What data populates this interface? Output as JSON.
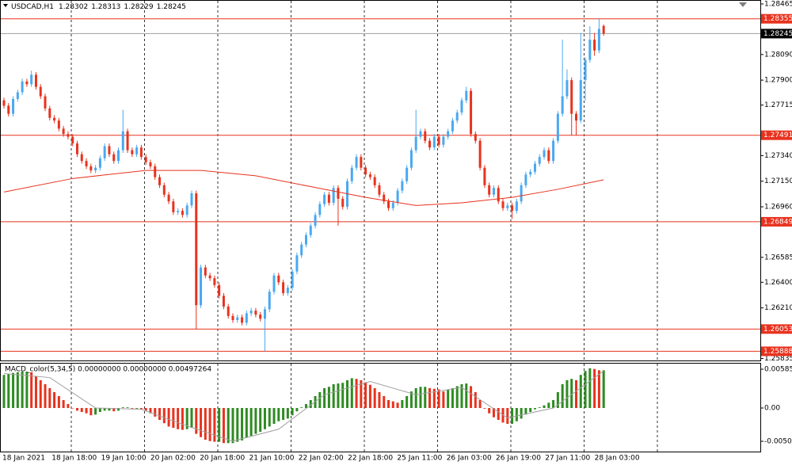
{
  "chart_data": [
    {
      "type": "candlestick",
      "symbol": "USDCAD,H1",
      "up_color": "#4aa8f0",
      "down_color": "#e8321e",
      "ohlc": [
        [
          1.2775,
          1.2777,
          1.2769,
          1.2771
        ],
        [
          1.2771,
          1.2773,
          1.2763,
          1.2765
        ],
        [
          1.2765,
          1.2778,
          1.2763,
          1.2776
        ],
        [
          1.2776,
          1.2783,
          1.2774,
          1.2781
        ],
        [
          1.2781,
          1.2791,
          1.2779,
          1.2789
        ],
        [
          1.2789,
          1.2791,
          1.2785,
          1.2787
        ],
        [
          1.2787,
          1.2797,
          1.2785,
          1.2794
        ],
        [
          1.2794,
          1.2796,
          1.2783,
          1.2785
        ],
        [
          1.2785,
          1.2787,
          1.2776,
          1.2778
        ],
        [
          1.2778,
          1.278,
          1.2767,
          1.2769
        ],
        [
          1.2769,
          1.2771,
          1.276,
          1.2762
        ],
        [
          1.2762,
          1.2764,
          1.2758,
          1.276
        ],
        [
          1.276,
          1.2762,
          1.2752,
          1.2754
        ],
        [
          1.2754,
          1.2756,
          1.2748,
          1.275
        ],
        [
          1.275,
          1.2752,
          1.2746,
          1.2748
        ],
        [
          1.2748,
          1.275,
          1.2741,
          1.2743
        ],
        [
          1.2743,
          1.2745,
          1.2733,
          1.2735
        ],
        [
          1.2735,
          1.2737,
          1.2728,
          1.273
        ],
        [
          1.273,
          1.2732,
          1.2724,
          1.2726
        ],
        [
          1.2726,
          1.2728,
          1.2721,
          1.2723
        ],
        [
          1.2723,
          1.2727,
          1.2721,
          1.2725
        ],
        [
          1.2725,
          1.2734,
          1.2723,
          1.2732
        ],
        [
          1.2732,
          1.2743,
          1.273,
          1.2741
        ],
        [
          1.2741,
          1.2743,
          1.2733,
          1.2735
        ],
        [
          1.2735,
          1.2737,
          1.2728,
          1.273
        ],
        [
          1.273,
          1.274,
          1.2728,
          1.2738
        ],
        [
          1.2738,
          1.2768,
          1.2736,
          1.2752
        ],
        [
          1.2752,
          1.2754,
          1.2736,
          1.2738
        ],
        [
          1.2738,
          1.274,
          1.2733,
          1.2735
        ],
        [
          1.2735,
          1.2742,
          1.2733,
          1.274
        ],
        [
          1.274,
          1.2742,
          1.2731,
          1.2733
        ],
        [
          1.2733,
          1.2735,
          1.2727,
          1.2729
        ],
        [
          1.2729,
          1.2731,
          1.2724,
          1.2726
        ],
        [
          1.2726,
          1.2728,
          1.2716,
          1.2718
        ],
        [
          1.2718,
          1.272,
          1.271,
          1.2712
        ],
        [
          1.2712,
          1.2714,
          1.2703,
          1.2705
        ],
        [
          1.2705,
          1.2707,
          1.2698,
          1.27
        ],
        [
          1.27,
          1.2702,
          1.269,
          1.2692
        ],
        [
          1.2692,
          1.2695,
          1.269,
          1.2693
        ],
        [
          1.2693,
          1.2695,
          1.2688,
          1.269
        ],
        [
          1.269,
          1.2699,
          1.2688,
          1.2697
        ],
        [
          1.2697,
          1.2708,
          1.2695,
          1.2706
        ],
        [
          1.2706,
          1.2708,
          1.2605,
          1.2623
        ],
        [
          1.2623,
          1.2653,
          1.2621,
          1.2651
        ],
        [
          1.2651,
          1.2653,
          1.2643,
          1.2645
        ],
        [
          1.2645,
          1.2647,
          1.2641,
          1.2643
        ],
        [
          1.2643,
          1.2645,
          1.2636,
          1.2638
        ],
        [
          1.2638,
          1.264,
          1.2628,
          1.263
        ],
        [
          1.263,
          1.2632,
          1.262,
          1.2622
        ],
        [
          1.2622,
          1.2624,
          1.2613,
          1.2615
        ],
        [
          1.2615,
          1.2617,
          1.261,
          1.2612
        ],
        [
          1.2612,
          1.2616,
          1.261,
          1.2614
        ],
        [
          1.2614,
          1.2616,
          1.2608,
          1.261
        ],
        [
          1.261,
          1.2619,
          1.2608,
          1.2617
        ],
        [
          1.2617,
          1.2621,
          1.2615,
          1.2619
        ],
        [
          1.2619,
          1.2621,
          1.2614,
          1.2616
        ],
        [
          1.2616,
          1.2618,
          1.2611,
          1.2613
        ],
        [
          1.2613,
          1.2622,
          1.2589,
          1.262
        ],
        [
          1.262,
          1.2635,
          1.2618,
          1.2633
        ],
        [
          1.2633,
          1.2647,
          1.2631,
          1.2645
        ],
        [
          1.2645,
          1.2647,
          1.2638,
          1.264
        ],
        [
          1.264,
          1.2642,
          1.263,
          1.2632
        ],
        [
          1.2632,
          1.2638,
          1.263,
          1.2636
        ],
        [
          1.2636,
          1.265,
          1.2634,
          1.2648
        ],
        [
          1.2648,
          1.2662,
          1.2646,
          1.266
        ],
        [
          1.266,
          1.267,
          1.2658,
          1.2668
        ],
        [
          1.2668,
          1.2677,
          1.2666,
          1.2675
        ],
        [
          1.2675,
          1.2684,
          1.2673,
          1.2682
        ],
        [
          1.2682,
          1.2692,
          1.268,
          1.269
        ],
        [
          1.269,
          1.27,
          1.2688,
          1.2698
        ],
        [
          1.2698,
          1.2707,
          1.2696,
          1.2705
        ],
        [
          1.2705,
          1.2707,
          1.2697,
          1.2699
        ],
        [
          1.2699,
          1.2712,
          1.2697,
          1.271
        ],
        [
          1.271,
          1.2712,
          1.2682,
          1.2702
        ],
        [
          1.2702,
          1.2704,
          1.2694,
          1.2696
        ],
        [
          1.2696,
          1.2717,
          1.2694,
          1.2715
        ],
        [
          1.2715,
          1.2727,
          1.2713,
          1.2725
        ],
        [
          1.2725,
          1.2735,
          1.2723,
          1.2733
        ],
        [
          1.2733,
          1.2735,
          1.2723,
          1.2725
        ],
        [
          1.2725,
          1.2727,
          1.2718,
          1.272
        ],
        [
          1.272,
          1.2722,
          1.2716,
          1.2718
        ],
        [
          1.2718,
          1.272,
          1.271,
          1.2712
        ],
        [
          1.2712,
          1.2714,
          1.2703,
          1.2705
        ],
        [
          1.2705,
          1.2707,
          1.2698,
          1.27
        ],
        [
          1.27,
          1.2702,
          1.2693,
          1.2695
        ],
        [
          1.2695,
          1.2701,
          1.2693,
          1.2699
        ],
        [
          1.2699,
          1.271,
          1.2697,
          1.2708
        ],
        [
          1.2708,
          1.2717,
          1.2706,
          1.2715
        ],
        [
          1.2715,
          1.2727,
          1.2713,
          1.2725
        ],
        [
          1.2725,
          1.274,
          1.2723,
          1.2738
        ],
        [
          1.2738,
          1.2768,
          1.2736,
          1.2748
        ],
        [
          1.2748,
          1.2754,
          1.2746,
          1.2752
        ],
        [
          1.2752,
          1.2754,
          1.2743,
          1.2745
        ],
        [
          1.2745,
          1.2747,
          1.2738,
          1.274
        ],
        [
          1.274,
          1.275,
          1.2738,
          1.2748
        ],
        [
          1.2748,
          1.275,
          1.274,
          1.2742
        ],
        [
          1.2742,
          1.275,
          1.274,
          1.2748
        ],
        [
          1.2748,
          1.2754,
          1.2746,
          1.2752
        ],
        [
          1.2752,
          1.2762,
          1.275,
          1.276
        ],
        [
          1.276,
          1.2768,
          1.2758,
          1.2766
        ],
        [
          1.2766,
          1.2777,
          1.2764,
          1.2775
        ],
        [
          1.2775,
          1.2785,
          1.2773,
          1.2782
        ],
        [
          1.2782,
          1.2784,
          1.2748,
          1.275
        ],
        [
          1.275,
          1.2752,
          1.2743,
          1.2745
        ],
        [
          1.2745,
          1.2747,
          1.2723,
          1.2725
        ],
        [
          1.2725,
          1.2727,
          1.271,
          1.2712
        ],
        [
          1.2712,
          1.2714,
          1.2703,
          1.2705
        ],
        [
          1.2705,
          1.2712,
          1.2703,
          1.271
        ],
        [
          1.271,
          1.2712,
          1.2698,
          1.27
        ],
        [
          1.27,
          1.2702,
          1.2693,
          1.2695
        ],
        [
          1.2695,
          1.2699,
          1.2693,
          1.2697
        ],
        [
          1.2697,
          1.2699,
          1.2687,
          1.2693
        ],
        [
          1.2693,
          1.2702,
          1.2691,
          1.27
        ],
        [
          1.27,
          1.2714,
          1.2698,
          1.2712
        ],
        [
          1.2712,
          1.2722,
          1.271,
          1.272
        ],
        [
          1.272,
          1.2724,
          1.2718,
          1.2722
        ],
        [
          1.2722,
          1.273,
          1.272,
          1.2728
        ],
        [
          1.2728,
          1.2735,
          1.2726,
          1.2733
        ],
        [
          1.2733,
          1.274,
          1.2731,
          1.2738
        ],
        [
          1.2738,
          1.274,
          1.2728,
          1.273
        ],
        [
          1.273,
          1.2747,
          1.2728,
          1.2745
        ],
        [
          1.2745,
          1.2767,
          1.2743,
          1.2765
        ],
        [
          1.2765,
          1.282,
          1.2763,
          1.2778
        ],
        [
          1.2778,
          1.2798,
          1.2776,
          1.279
        ],
        [
          1.279,
          1.2792,
          1.2749,
          1.2765
        ],
        [
          1.2765,
          1.2767,
          1.2749,
          1.276
        ],
        [
          1.276,
          1.2825,
          1.2758,
          1.279
        ],
        [
          1.279,
          1.2807,
          1.2775,
          1.2805
        ],
        [
          1.2805,
          1.283,
          1.2803,
          1.282
        ],
        [
          1.282,
          1.2825,
          1.2808,
          1.2812
        ],
        [
          1.2812,
          1.28355,
          1.281,
          1.2828
        ],
        [
          1.28302,
          1.28313,
          1.28229,
          1.28245
        ]
      ],
      "moving_average": {
        "color": "#e8321e",
        "x": [
          0,
          15,
          31,
          43,
          55,
          67,
          79,
          90,
          100,
          111,
          121,
          131
        ],
        "values": [
          1.2707,
          1.2717,
          1.2723,
          1.2723,
          1.2719,
          1.2711,
          1.2703,
          1.2697,
          1.2699,
          1.2703,
          1.2709,
          1.2716
        ]
      },
      "levels": {
        "color": "#e8321e",
        "values": [
          1.28355,
          1.27491,
          1.26849,
          1.26053,
          1.25888
        ]
      },
      "current_price_color": "#000000",
      "ylim": [
        1.2582,
        1.28465
      ],
      "yticks": [
        1.28465,
        {
          "value": 1.2809,
          "label": "1.28090"
        },
        {
          "value": 1.279,
          "label": "1.27900"
        },
        1.27715,
        {
          "value": 1.2734,
          "label": "1.27340"
        },
        {
          "value": 1.2715,
          "label": "1.27150"
        },
        {
          "value": 1.2696,
          "label": "1.26960"
        },
        1.26585,
        {
          "value": 1.264,
          "label": "1.26400"
        },
        {
          "value": 1.2621,
          "label": "1.26210"
        },
        1.25835
      ],
      "x_labels": [
        "18 Jan 2021",
        "18 Jan 18:00",
        "19 Jan 10:00",
        "20 Jan 02:00",
        "20 Jan 18:00",
        "21 Jan 10:00",
        "22 Jan 02:00",
        "22 Jan 18:00",
        "25 Jan 11:00",
        "26 Jan 03:00",
        "26 Jan 19:00",
        "27 Jan 11:00",
        "28 Jan 03:00"
      ]
    },
    {
      "type": "macd",
      "title": "MACD_color(5,34,5) 0.00000000 0.00000000 0.00497264",
      "up_color": "#2e8b22",
      "down_color": "#e8321e",
      "values": [
        0.005,
        0.0052,
        0.0053,
        0.0054,
        0.0055,
        0.0055,
        0.0054,
        0.0048,
        0.0042,
        0.0036,
        0.003,
        0.0024,
        0.0018,
        0.0012,
        0.0006,
        0,
        -0.0004,
        -0.0006,
        -0.0008,
        -0.0011,
        -0.001,
        -0.0006,
        -0.0004,
        -0.0004,
        -0.0005,
        -0.0004,
        0.0001,
        0.0001,
        -0.0001,
        -0.0001,
        -0.0002,
        -0.0004,
        -0.0008,
        -0.0013,
        -0.0018,
        -0.0023,
        -0.0028,
        -0.003,
        -0.0032,
        -0.0033,
        -0.0032,
        -0.003,
        -0.0039,
        -0.0044,
        -0.0048,
        -0.005,
        -0.0051,
        -0.0051,
        -0.0053,
        -0.0053,
        -0.0053,
        -0.0051,
        -0.0049,
        -0.0045,
        -0.0042,
        -0.0039,
        -0.0036,
        -0.0032,
        -0.0028,
        -0.0024,
        -0.002,
        -0.0018,
        -0.0016,
        -0.0011,
        -0.0005,
        0.0001,
        0.0006,
        0.0012,
        0.0018,
        0.0024,
        0.003,
        0.0032,
        0.0036,
        0.0037,
        0.0038,
        0.0042,
        0.0045,
        0.0044,
        0.0042,
        0.0039,
        0.0035,
        0.003,
        0.0024,
        0.0018,
        0.0012,
        0.001,
        0.0008,
        0.0012,
        0.0018,
        0.0025,
        0.003,
        0.0032,
        0.0032,
        0.003,
        0.0029,
        0.0028,
        0.0025,
        0.0028,
        0.003,
        0.0033,
        0.0036,
        0.0037,
        0.0033,
        0.0024,
        0.0012,
        -0.0001,
        -0.0008,
        -0.0014,
        -0.0018,
        -0.0022,
        -0.0024,
        -0.0024,
        -0.002,
        -0.0016,
        -0.001,
        -0.0006,
        -0.0002,
        0.0001,
        0.0004,
        0.0008,
        0.0012,
        0.0024,
        0.0036,
        0.0042,
        0.0044,
        0.0042,
        0.005,
        0.0056,
        0.006,
        0.0059,
        0.0057,
        0.0057
      ],
      "signal": {
        "color": "#a0a0a0",
        "x": [
          0,
          10,
          20,
          30,
          40,
          50,
          60,
          70,
          80,
          90,
          100,
          110,
          120,
          131
        ],
        "values": [
          0.0052,
          0.0046,
          0.0,
          -0.0002,
          -0.0027,
          -0.005,
          -0.0032,
          0.002,
          0.004,
          0.002,
          0.0031,
          -0.0015,
          0.0,
          0.0056
        ]
      },
      "ylim": [
        -0.00658,
        0.00658
      ],
      "yticks": [
        0.005859,
        {
          "value": 0,
          "label": "0.00"
        },
        -0.00503
      ]
    }
  ]
}
